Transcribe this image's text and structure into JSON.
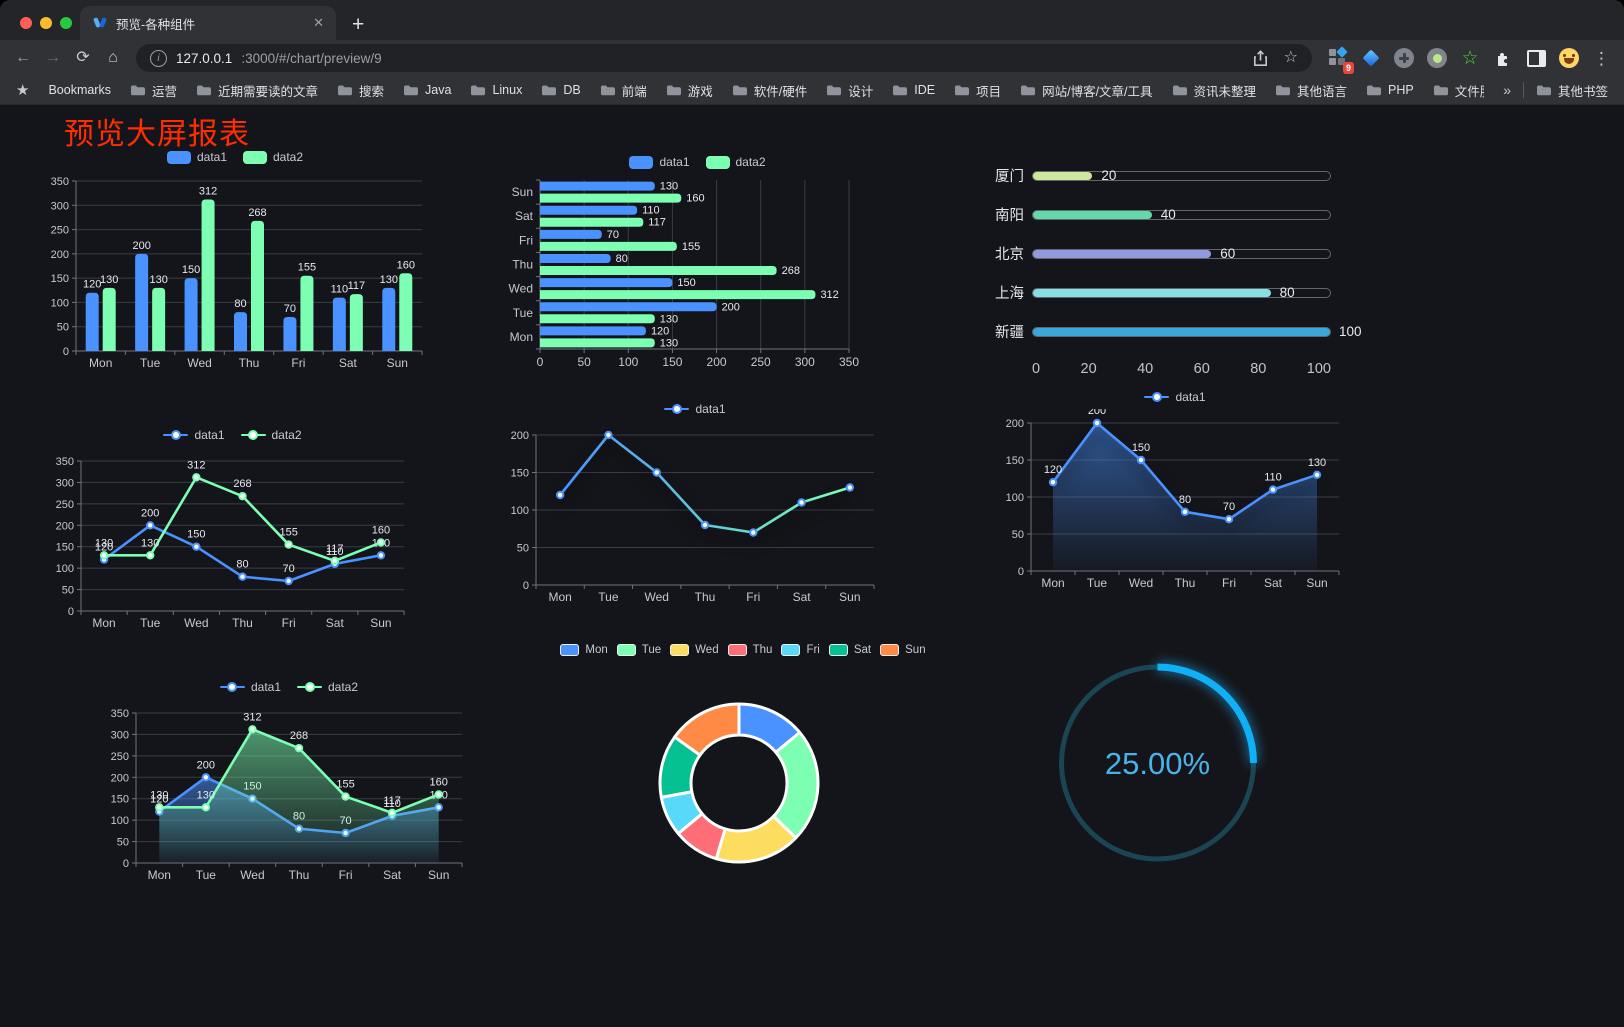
{
  "browser": {
    "tab_title": "预览-各种组件",
    "url_host": "127.0.0.1",
    "url_rest": ":3000/#/chart/preview/9",
    "extension_badge": "9",
    "icons": {
      "close": "✕",
      "new_tab": "+",
      "back": "←",
      "forward": "→",
      "reload": "⟳",
      "home": "⌂",
      "info": "i",
      "star_outline": "☆",
      "bookmarks_star": "★",
      "overflow": "»",
      "menu": "⋮",
      "green_star": "☆"
    },
    "bookmarks_bar": {
      "bookmarks_label": "Bookmarks",
      "folders": [
        "运营",
        "近期需要读的文章",
        "搜索",
        "Java",
        "Linux",
        "DB",
        "前端",
        "游戏",
        "软件/硬件",
        "设计",
        "IDE",
        "项目",
        "网站/博客/文章/工具",
        "资讯未整理",
        "其他语言",
        "PHP",
        "文件服务器"
      ],
      "overflow_label": "»",
      "other_bookmarks_label": "其他书签"
    }
  },
  "page": {
    "title": "预览大屏报表",
    "title_color": "#ff2d00",
    "background": "#14151a"
  },
  "palette": {
    "blue": "#4992ff",
    "green": "#7cffb2",
    "yellow": "#fddd60",
    "red": "#ff6e76",
    "lightblue": "#58d9f9",
    "teal": "#05c091",
    "orange": "#ff8a45"
  },
  "chart_data": [
    {
      "id": "bar-vertical",
      "type": "bar",
      "categories": [
        "Mon",
        "Tue",
        "Wed",
        "Thu",
        "Fri",
        "Sat",
        "Sun"
      ],
      "series": [
        {
          "name": "data1",
          "color": "#4992ff",
          "values": [
            120,
            200,
            150,
            80,
            70,
            110,
            130
          ]
        },
        {
          "name": "data2",
          "color": "#7cffb2",
          "values": [
            130,
            130,
            312,
            268,
            155,
            117,
            160
          ]
        }
      ],
      "ylim": [
        0,
        350
      ],
      "yticks": [
        0,
        50,
        100,
        150,
        200,
        250,
        300,
        350
      ],
      "labels": true,
      "legend_position": "top"
    },
    {
      "id": "bar-horizontal",
      "type": "hbar",
      "categories": [
        "Mon",
        "Tue",
        "Wed",
        "Thu",
        "Fri",
        "Sat",
        "Sun"
      ],
      "series": [
        {
          "name": "data1",
          "color": "#4992ff",
          "values": [
            120,
            200,
            150,
            80,
            70,
            110,
            130
          ]
        },
        {
          "name": "data2",
          "color": "#7cffb2",
          "values": [
            130,
            130,
            312,
            268,
            155,
            117,
            160
          ]
        }
      ],
      "xlim": [
        0,
        350
      ],
      "xticks": [
        0,
        50,
        100,
        150,
        200,
        250,
        300,
        350
      ],
      "labels": true,
      "legend_position": "top"
    },
    {
      "id": "progress-bars",
      "type": "progress",
      "max": 100,
      "ticks": [
        0,
        20,
        40,
        60,
        80,
        100
      ],
      "items": [
        {
          "label": "厦门",
          "value": 20,
          "color": "#cde79b"
        },
        {
          "label": "南阳",
          "value": 40,
          "color": "#63d8ab"
        },
        {
          "label": "北京",
          "value": 60,
          "color": "#8f9bdc"
        },
        {
          "label": "上海",
          "value": 80,
          "color": "#86dfe2"
        },
        {
          "label": "新疆",
          "value": 100,
          "color": "#3ba6da"
        }
      ]
    },
    {
      "id": "line-two-series",
      "type": "line",
      "categories": [
        "Mon",
        "Tue",
        "Wed",
        "Thu",
        "Fri",
        "Sat",
        "Sun"
      ],
      "series": [
        {
          "name": "data1",
          "color": "#4992ff",
          "values": [
            120,
            200,
            150,
            80,
            70,
            110,
            130
          ]
        },
        {
          "name": "data2",
          "color": "#7cffb2",
          "values": [
            130,
            130,
            312,
            268,
            155,
            117,
            160
          ]
        }
      ],
      "ylim": [
        0,
        350
      ],
      "yticks": [
        0,
        50,
        100,
        150,
        200,
        250,
        300,
        350
      ],
      "labels": true,
      "markers": true,
      "legend_position": "top"
    },
    {
      "id": "line-gradient",
      "type": "line",
      "categories": [
        "Mon",
        "Tue",
        "Wed",
        "Thu",
        "Fri",
        "Sat",
        "Sun"
      ],
      "series": [
        {
          "name": "data1",
          "color": "#4992ff",
          "gradient": [
            "#4992ff",
            "#7cffb2"
          ],
          "values": [
            120,
            200,
            150,
            80,
            70,
            110,
            130
          ]
        }
      ],
      "ylim": [
        0,
        200
      ],
      "yticks": [
        0,
        50,
        100,
        150,
        200
      ],
      "labels": false,
      "markers": true,
      "shadow": true,
      "legend_position": "top"
    },
    {
      "id": "area-single",
      "type": "line",
      "categories": [
        "Mon",
        "Tue",
        "Wed",
        "Thu",
        "Fri",
        "Sat",
        "Sun"
      ],
      "series": [
        {
          "name": "data1",
          "color": "#4992ff",
          "area": true,
          "values": [
            120,
            200,
            150,
            80,
            70,
            110,
            130
          ]
        }
      ],
      "ylim": [
        0,
        200
      ],
      "yticks": [
        0,
        50,
        100,
        150,
        200
      ],
      "labels": true,
      "markers": true,
      "shadow": true,
      "legend_position": "top"
    },
    {
      "id": "line-area-two",
      "type": "line",
      "categories": [
        "Mon",
        "Tue",
        "Wed",
        "Thu",
        "Fri",
        "Sat",
        "Sun"
      ],
      "series": [
        {
          "name": "data1",
          "color": "#4992ff",
          "area": true,
          "values": [
            120,
            200,
            150,
            80,
            70,
            110,
            130
          ]
        },
        {
          "name": "data2",
          "color": "#7cffb2",
          "area": true,
          "values": [
            130,
            130,
            312,
            268,
            155,
            117,
            160
          ]
        }
      ],
      "ylim": [
        0,
        350
      ],
      "yticks": [
        0,
        50,
        100,
        150,
        200,
        250,
        300,
        350
      ],
      "labels": true,
      "markers": true,
      "legend_position": "top"
    },
    {
      "id": "donut",
      "type": "donut",
      "categories": [
        "Mon",
        "Tue",
        "Wed",
        "Thu",
        "Fri",
        "Sat",
        "Sun"
      ],
      "values": [
        120,
        200,
        150,
        80,
        70,
        110,
        130
      ],
      "colors": [
        "#4992ff",
        "#7cffb2",
        "#fddd60",
        "#ff6e76",
        "#58d9f9",
        "#05c091",
        "#ff8a45"
      ],
      "legend_position": "top"
    },
    {
      "id": "gauge",
      "type": "gauge",
      "value": 25,
      "max": 100,
      "display": "25.00%",
      "color": "#0fb0f5",
      "track": "#1b4552",
      "text_color": "#49b3e9"
    }
  ]
}
